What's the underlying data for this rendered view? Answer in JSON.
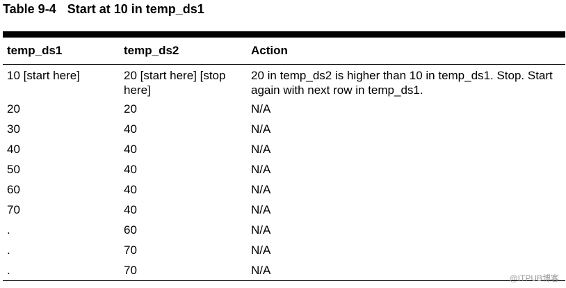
{
  "caption": {
    "number": "Table 9-4",
    "title": "Start at 10 in temp_ds1"
  },
  "table": {
    "headers": [
      "temp_ds1",
      "temp_ds2",
      "Action"
    ],
    "rows": [
      [
        "10 [start here]",
        "20 [start here] [stop here]",
        "20 in temp_ds2 is higher than 10 in temp_ds1. Stop. Start again with next row in temp_ds1."
      ],
      [
        "20",
        "20",
        "N/A"
      ],
      [
        "30",
        "40",
        "N/A"
      ],
      [
        "40",
        "40",
        "N/A"
      ],
      [
        "50",
        "40",
        "N/A"
      ],
      [
        "60",
        "40",
        "N/A"
      ],
      [
        "70",
        "40",
        "N/A"
      ],
      [
        ".",
        "60",
        "N/A"
      ],
      [
        ".",
        "70",
        "N/A"
      ],
      [
        ".",
        "70",
        "N/A"
      ]
    ]
  },
  "watermark": "@ITPUB博客"
}
